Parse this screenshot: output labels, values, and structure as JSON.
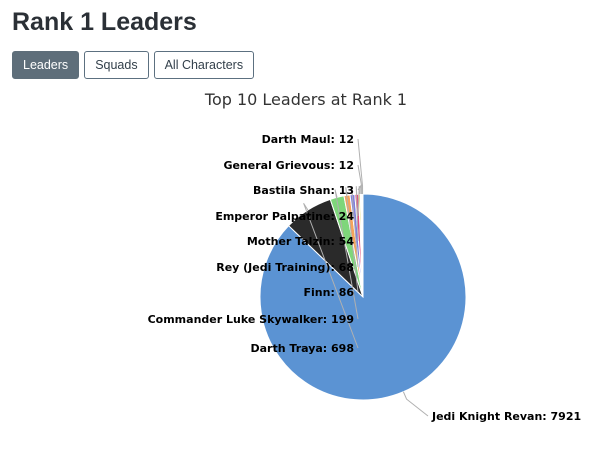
{
  "page": {
    "title": "Rank 1 Leaders"
  },
  "tabs": [
    {
      "label": "Leaders",
      "active": true
    },
    {
      "label": "Squads",
      "active": false
    },
    {
      "label": "All Characters",
      "active": false
    }
  ],
  "chart_data": {
    "type": "pie",
    "title": "Top 10 Leaders at Rank 1",
    "slices": [
      {
        "label": "Jedi Knight Revan",
        "value": 7921,
        "color": "#5b93d3"
      },
      {
        "label": "Darth Traya",
        "value": 698,
        "color": "#2a2a2a"
      },
      {
        "label": "Commander Luke Skywalker",
        "value": 199,
        "color": "#7ed67a"
      },
      {
        "label": "Finn",
        "value": 86,
        "color": "#f5a35c"
      },
      {
        "label": "Rey (Jedi Training)",
        "value": 68,
        "color": "#7f7fe0"
      },
      {
        "label": "Mother Talzin",
        "value": 54,
        "color": "#e3507a"
      },
      {
        "label": "Emperor Palpatine",
        "value": 24,
        "color": "#e4d354"
      },
      {
        "label": "Bastila Shan",
        "value": 13,
        "color": "#2b908f"
      },
      {
        "label": "General Grievous",
        "value": 12,
        "color": "#f45b5b"
      },
      {
        "label": "Darth Maul",
        "value": 12,
        "color": "#91e8e1"
      }
    ]
  }
}
